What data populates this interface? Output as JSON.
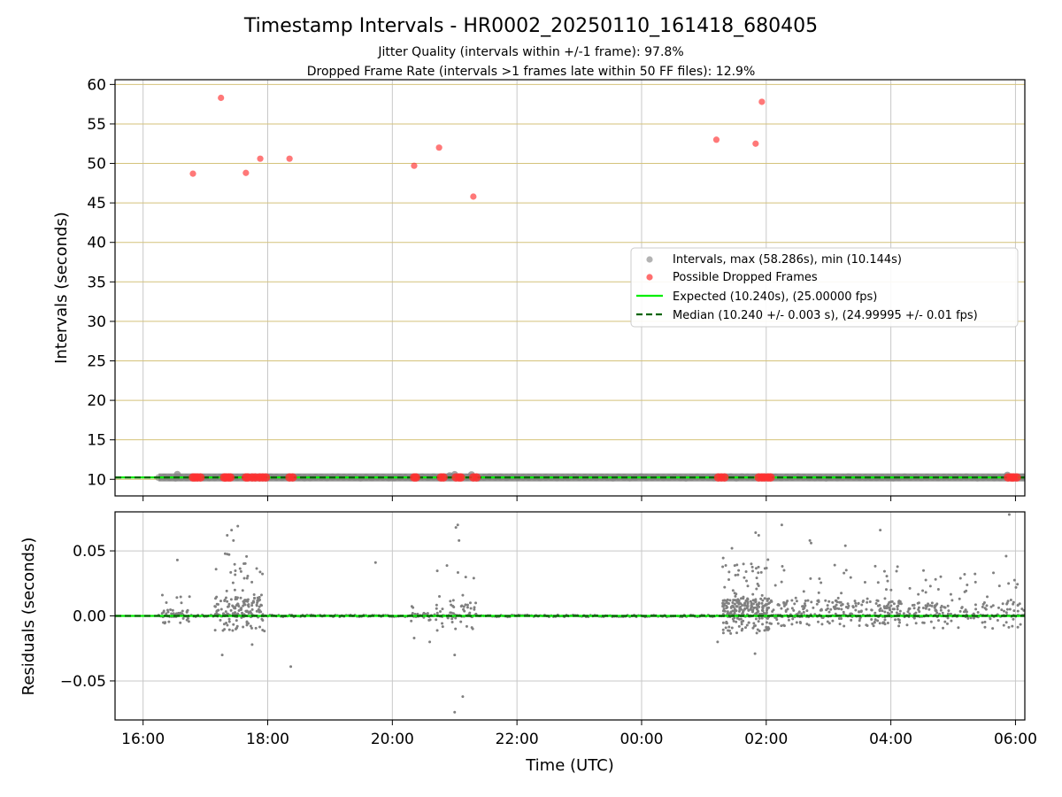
{
  "figure": {
    "title": "Timestamp Intervals - HR0002_20250110_161418_680405",
    "subtitle_1": "Jitter Quality (intervals within +/-1 frame): 97.8%",
    "subtitle_2": "Dropped Frame Rate (intervals >1 frames late within 50 FF files): 12.9%"
  },
  "colors": {
    "intervals": "#808080",
    "dropped": "#ff3030",
    "expected": "#00ee00",
    "median": "#006400",
    "hgrid_top": "#d4c27a",
    "grid": "#c8c8c8"
  },
  "chart_data": [
    {
      "type": "scatter",
      "ylabel": "Intervals (seconds)",
      "xlim": [
        15.55,
        30.15
      ],
      "ylim": [
        7.9,
        60.6
      ],
      "yticks": [
        10,
        15,
        20,
        25,
        30,
        35,
        40,
        45,
        50,
        55,
        60
      ],
      "xticks": [
        16,
        18,
        20,
        22,
        24,
        26,
        28,
        30
      ],
      "grid": true,
      "legend_position": "center-right",
      "legend": [
        "Intervals, max (58.286s), min (10.144s)",
        "Possible Dropped Frames",
        "Expected (10.240s), (25.00000 fps)",
        "Median (10.240 +/- 0.003 s), (24.99995 +/- 0.01 fps)"
      ],
      "expected": 10.24,
      "median": 10.24,
      "intervals_range": [
        16.25,
        30.15
      ],
      "interval_bumps": [
        [
          16.55,
          10.62
        ],
        [
          21.0,
          10.6
        ],
        [
          21.27,
          10.58
        ],
        [
          29.87,
          10.52
        ],
        [
          20.92,
          10.45
        ]
      ],
      "dropped_high": [
        [
          16.8,
          48.7
        ],
        [
          17.25,
          58.3
        ],
        [
          17.65,
          48.8
        ],
        [
          17.88,
          50.6
        ],
        [
          18.35,
          50.6
        ],
        [
          20.35,
          49.7
        ],
        [
          20.75,
          52.0
        ],
        [
          21.3,
          45.8
        ],
        [
          25.2,
          53.0
        ],
        [
          25.83,
          52.5
        ],
        [
          25.93,
          57.8
        ]
      ],
      "dropped_low": [
        16.8,
        16.83,
        16.87,
        16.92,
        17.3,
        17.33,
        17.37,
        17.4,
        17.65,
        17.68,
        17.75,
        17.8,
        17.87,
        17.92,
        17.97,
        18.35,
        18.4,
        20.35,
        20.38,
        20.78,
        20.82,
        21.02,
        21.07,
        21.1,
        21.3,
        21.35,
        25.23,
        25.28,
        25.33,
        25.88,
        25.93,
        25.97,
        26.03,
        26.07,
        29.88,
        29.93,
        29.97,
        30.02
      ]
    },
    {
      "type": "scatter",
      "ylabel": "Residuals (seconds)",
      "xlabel": "Time (UTC)",
      "xlim": [
        15.55,
        30.15
      ],
      "ylim": [
        -0.08,
        0.08
      ],
      "yticks": [
        -0.05,
        0.0,
        0.05
      ],
      "ytick_labels": [
        "−0.05",
        "0.00",
        "0.05"
      ],
      "xticks": [
        16,
        18,
        20,
        22,
        24,
        26,
        28,
        30
      ],
      "xtick_labels": [
        "16:00",
        "18:00",
        "20:00",
        "22:00",
        "00:00",
        "02:00",
        "04:00",
        "06:00"
      ],
      "grid": true,
      "outliers": [
        [
          16.55,
          0.043
        ],
        [
          17.27,
          -0.03
        ],
        [
          17.75,
          -0.022
        ],
        [
          18.37,
          -0.039
        ],
        [
          19.73,
          0.041
        ],
        [
          20.6,
          -0.02
        ],
        [
          20.35,
          -0.017
        ],
        [
          21.0,
          -0.03
        ],
        [
          21.0,
          -0.074
        ],
        [
          21.13,
          -0.062
        ],
        [
          21.02,
          0.068
        ],
        [
          21.05,
          0.07
        ],
        [
          21.07,
          0.058
        ],
        [
          25.22,
          -0.02
        ],
        [
          25.82,
          -0.029
        ],
        [
          25.45,
          0.052
        ],
        [
          25.83,
          0.064
        ],
        [
          25.88,
          0.062
        ],
        [
          26.25,
          0.07
        ],
        [
          26.7,
          0.058
        ],
        [
          26.72,
          0.056
        ],
        [
          27.27,
          0.054
        ],
        [
          27.83,
          0.066
        ],
        [
          29.87,
          0.082
        ],
        [
          29.9,
          0.078
        ],
        [
          29.85,
          0.046
        ],
        [
          17.35,
          0.062
        ],
        [
          17.42,
          0.066
        ],
        [
          17.52,
          0.069
        ],
        [
          17.45,
          0.058
        ]
      ],
      "clusters": [
        {
          "x0": 16.3,
          "x1": 16.75,
          "n": 40,
          "ymin": -0.006,
          "ymax": 0.016
        },
        {
          "x0": 17.15,
          "x1": 17.95,
          "n": 170,
          "ymin": -0.012,
          "ymax": 0.05
        },
        {
          "x0": 20.3,
          "x1": 20.7,
          "n": 15,
          "ymin": -0.004,
          "ymax": 0.008
        },
        {
          "x0": 20.7,
          "x1": 21.35,
          "n": 55,
          "ymin": -0.012,
          "ymax": 0.04
        },
        {
          "x0": 25.3,
          "x1": 26.05,
          "n": 260,
          "ymin": -0.014,
          "ymax": 0.045
        },
        {
          "x0": 26.05,
          "x1": 28.2,
          "n": 240,
          "ymin": -0.008,
          "ymax": 0.04
        },
        {
          "x0": 28.2,
          "x1": 30.15,
          "n": 160,
          "ymin": -0.01,
          "ymax": 0.035
        }
      ]
    }
  ]
}
